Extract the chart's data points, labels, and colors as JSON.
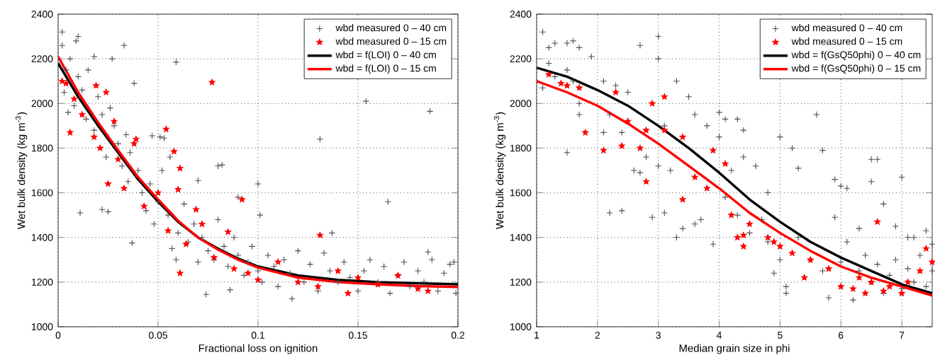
{
  "chart_data": [
    {
      "type": "scatter",
      "xlabel": "Fractional loss on ignition",
      "ylabel": "Wet bulk density (kg m$^{-3}$)",
      "xlim": [
        0,
        0.2
      ],
      "ylim": [
        1000,
        2400
      ],
      "xticks": [
        0,
        0.05,
        0.1,
        0.15,
        0.2
      ],
      "yticks": [
        1000,
        1200,
        1400,
        1600,
        1800,
        2000,
        2200,
        2400
      ],
      "grid": true,
      "legend": "top right",
      "series": [
        {
          "name": "wbd measured 0 – 40 cm",
          "type": "scatter",
          "marker": "cross",
          "color": "#4d4d4d",
          "x": [
            0.002,
            0.01,
            0.009,
            0.033,
            0.059,
            0.027,
            0.018,
            0.038,
            0.154,
            0.186,
            0.131,
            0.165,
            0.1,
            0.101,
            0.011,
            0.022,
            0.025,
            0.037,
            0.074,
            0.086,
            0.117,
            0.08,
            0.082,
            0.07,
            0.047,
            0.051,
            0.053,
            0.056,
            0.09,
            0.137,
            0.185,
            0.002,
            0.004,
            0.006,
            0.003,
            0.005,
            0.008,
            0.01,
            0.012,
            0.015,
            0.014,
            0.018,
            0.02,
            0.022,
            0.024,
            0.026,
            0.028,
            0.03,
            0.032,
            0.034,
            0.035,
            0.036,
            0.04,
            0.042,
            0.044,
            0.046,
            0.048,
            0.05,
            0.052,
            0.055,
            0.057,
            0.059,
            0.06,
            0.063,
            0.065,
            0.068,
            0.07,
            0.072,
            0.075,
            0.078,
            0.08,
            0.083,
            0.085,
            0.088,
            0.09,
            0.093,
            0.095,
            0.097,
            0.1,
            0.102,
            0.105,
            0.108,
            0.11,
            0.113,
            0.116,
            0.12,
            0.123,
            0.126,
            0.13,
            0.133,
            0.136,
            0.14,
            0.143,
            0.146,
            0.15,
            0.153,
            0.156,
            0.16,
            0.163,
            0.166,
            0.17,
            0.173,
            0.176,
            0.18,
            0.183,
            0.187,
            0.19,
            0.193,
            0.196,
            0.199,
            0.198
          ],
          "values": [
            2320,
            2300,
            2280,
            2260,
            2185,
            2200,
            2210,
            2090,
            2010,
            1965,
            1840,
            1560,
            1640,
            1500,
            1510,
            1525,
            1515,
            1375,
            1145,
            1165,
            1125,
            1720,
            1725,
            1655,
            1855,
            1850,
            1845,
            1760,
            1580,
            1420,
            1335,
            2260,
            2150,
            2200,
            2050,
            1960,
            1990,
            2120,
            2060,
            2150,
            1930,
            1880,
            2030,
            1950,
            1760,
            1980,
            1900,
            1820,
            1720,
            1860,
            1650,
            1780,
            1700,
            1600,
            1520,
            1640,
            1460,
            1560,
            1700,
            1500,
            1350,
            1300,
            1420,
            1550,
            1380,
            1460,
            1290,
            1400,
            1340,
            1300,
            1480,
            1360,
            1270,
            1400,
            1320,
            1230,
            1290,
            1360,
            1250,
            1200,
            1320,
            1270,
            1180,
            1300,
            1240,
            1340,
            1200,
            1280,
            1160,
            1330,
            1250,
            1200,
            1290,
            1220,
            1160,
            1250,
            1300,
            1200,
            1270,
            1150,
            1230,
            1290,
            1180,
            1250,
            1200,
            1300,
            1160,
            1240,
            1280,
            1150,
            1290
          ]
        },
        {
          "name": "wbd measured 0 – 15 cm",
          "type": "scatter",
          "marker": "star",
          "color": "#ff0000",
          "x": [
            0.002,
            0.004,
            0.006,
            0.008,
            0.012,
            0.018,
            0.019,
            0.021,
            0.024,
            0.025,
            0.028,
            0.03,
            0.033,
            0.038,
            0.039,
            0.043,
            0.05,
            0.054,
            0.058,
            0.061,
            0.06,
            0.061,
            0.069,
            0.077,
            0.085,
            0.092,
            0.131,
            0.055,
            0.064,
            0.072,
            0.078,
            0.088,
            0.095,
            0.1,
            0.11,
            0.12,
            0.13,
            0.14,
            0.145,
            0.15,
            0.16,
            0.17,
            0.18,
            0.185
          ],
          "values": [
            2100,
            2090,
            1870,
            2020,
            1950,
            1850,
            2080,
            1800,
            2050,
            1640,
            1920,
            1750,
            1620,
            1820,
            1840,
            1540,
            1600,
            1885,
            1785,
            1710,
            1615,
            1240,
            1525,
            2095,
            1425,
            1570,
            1410,
            1430,
            1370,
            1460,
            1310,
            1260,
            1240,
            1210,
            1290,
            1200,
            1180,
            1250,
            1150,
            1220,
            1190,
            1230,
            1170,
            1160
          ]
        },
        {
          "name": "wbd = f(LOI) 0 – 40 cm",
          "type": "line",
          "marker": "none",
          "color": "#000000",
          "x": [
            0,
            0.01,
            0.02,
            0.03,
            0.04,
            0.05,
            0.06,
            0.07,
            0.08,
            0.09,
            0.1,
            0.12,
            0.14,
            0.16,
            0.18,
            0.2
          ],
          "values": [
            2180,
            2030,
            1900,
            1780,
            1660,
            1560,
            1470,
            1400,
            1350,
            1305,
            1270,
            1230,
            1210,
            1200,
            1195,
            1190
          ]
        },
        {
          "name": "wbd = f(LOI) 0 – 15 cm",
          "type": "line",
          "marker": "none",
          "color": "#ff0000",
          "x": [
            0,
            0.01,
            0.02,
            0.03,
            0.04,
            0.05,
            0.06,
            0.07,
            0.08,
            0.09,
            0.1,
            0.12,
            0.14,
            0.16,
            0.18,
            0.2
          ],
          "values": [
            2210,
            2050,
            1915,
            1790,
            1670,
            1570,
            1475,
            1400,
            1345,
            1300,
            1265,
            1220,
            1200,
            1190,
            1182,
            1178
          ]
        }
      ]
    },
    {
      "type": "scatter",
      "xlabel": "Median grain size in phi",
      "ylabel": "Wet bulk density (kg m$^{-3}$)",
      "xlim": [
        1,
        7.5
      ],
      "ylim": [
        1000,
        2400
      ],
      "xticks": [
        1,
        2,
        3,
        4,
        5,
        6,
        7
      ],
      "yticks": [
        1000,
        1200,
        1400,
        1600,
        1800,
        2000,
        2200,
        2400
      ],
      "grid": true,
      "legend": "top right",
      "series": [
        {
          "name": "wbd measured 0 – 40 cm",
          "type": "scatter",
          "marker": "cross",
          "color": "#4d4d4d",
          "x": [
            1.1,
            1.2,
            1.3,
            1.5,
            1.6,
            1.7,
            1.9,
            1.2,
            1.1,
            1.3,
            1.5,
            1.6,
            1.7,
            1.7,
            1.5,
            2.7,
            3,
            3,
            2.1,
            2.3,
            2.5,
            2.2,
            2.4,
            2.1,
            2.2,
            2.4,
            2.9,
            3.1,
            3.3,
            3.4,
            3.6,
            3.7,
            3.9,
            2.6,
            2.7,
            2.8,
            3,
            3.2,
            3.1,
            3.3,
            3.5,
            3.6,
            3.8,
            4,
            4,
            4.1,
            4.3,
            4.4,
            4.2,
            4.4,
            4.6,
            4.1,
            4.3,
            4.5,
            4.7,
            4.8,
            5,
            5.2,
            5.3,
            5.6,
            5.7,
            5.9,
            6,
            6.1,
            6.5,
            6.6,
            6.5,
            6.7,
            7,
            7.2,
            7.4,
            4.8,
            5,
            5.1,
            5.1,
            5.3,
            5.5,
            5.7,
            5.8,
            6,
            6.1,
            6.2,
            6.3,
            6.4,
            6.5,
            6.6,
            6.7,
            6.8,
            6.9,
            7,
            7.1,
            7.2,
            7.3,
            7.4,
            7.5,
            5.9,
            6.3,
            6.9,
            7.1,
            7.5,
            4.9
          ],
          "values": [
            2320,
            2250,
            2270,
            2270,
            2280,
            2250,
            2210,
            2180,
            2070,
            2120,
            2150,
            2100,
            2000,
            1950,
            1780,
            2260,
            2300,
            2200,
            2100,
            2080,
            2050,
            1950,
            1870,
            1870,
            1510,
            1520,
            1490,
            1510,
            1400,
            1440,
            1460,
            1480,
            1370,
            1700,
            1690,
            1760,
            1720,
            1700,
            1900,
            2100,
            2030,
            1950,
            1900,
            1960,
            1850,
            1930,
            1930,
            1880,
            1700,
            1760,
            1720,
            1580,
            1500,
            1420,
            1480,
            1600,
            1850,
            1800,
            1710,
            1950,
            1790,
            1660,
            1630,
            1620,
            1750,
            1750,
            1650,
            1550,
            1670,
            1400,
            1430,
            1380,
            1300,
            1180,
            1150,
            1400,
            1300,
            1250,
            1130,
            1290,
            1380,
            1120,
            1250,
            1320,
            1200,
            1280,
            1150,
            1230,
            1300,
            1170,
            1260,
            1200,
            1320,
            1180,
            1250,
            1490,
            1440,
            1450,
            1400,
            1370,
            1240
          ]
        },
        {
          "name": "wbd measured 0 – 15 cm",
          "type": "scatter",
          "marker": "star",
          "color": "#ff0000",
          "x": [
            1.2,
            1.4,
            1.5,
            1.7,
            1.8,
            2.1,
            2.3,
            2.4,
            2.5,
            2.8,
            2.7,
            2.8,
            2.9,
            3.1,
            3.1,
            3.4,
            3.4,
            3.6,
            3.8,
            3.9,
            4.1,
            4.2,
            4.3,
            4.4,
            4.4,
            4.5,
            4.8,
            4.9,
            5,
            5.2,
            5.4,
            5.5,
            5.8,
            6,
            6.2,
            6.3,
            6.4,
            6.5,
            6.6,
            6.7,
            6.8,
            7,
            7.1,
            7.3,
            7.4,
            7.5
          ],
          "values": [
            2130,
            2090,
            2080,
            2070,
            1870,
            1790,
            2050,
            1810,
            1920,
            1650,
            1800,
            1880,
            2000,
            2030,
            1880,
            1850,
            1570,
            1670,
            1620,
            1790,
            1730,
            1500,
            1400,
            1410,
            1360,
            1460,
            1400,
            1380,
            1360,
            1330,
            1220,
            1300,
            1260,
            1180,
            1170,
            1220,
            1150,
            1200,
            1470,
            1160,
            1180,
            1150,
            1200,
            1250,
            1350,
            1290
          ]
        },
        {
          "name": "wbd = f(GsQ50phi) 0 – 40 cm",
          "type": "line",
          "marker": "none",
          "color": "#000000",
          "x": [
            1,
            1.5,
            2,
            2.5,
            3,
            3.5,
            4,
            4.5,
            5,
            5.5,
            6,
            6.5,
            7,
            7.5
          ],
          "values": [
            2160,
            2120,
            2060,
            1990,
            1900,
            1800,
            1690,
            1570,
            1470,
            1380,
            1310,
            1250,
            1190,
            1150
          ]
        },
        {
          "name": "wbd = f(GsQ50phi) 0 – 15 cm",
          "type": "line",
          "marker": "none",
          "color": "#ff0000",
          "x": [
            1,
            1.5,
            2,
            2.5,
            3,
            3.5,
            4,
            4.5,
            5,
            5.5,
            6,
            6.5,
            7,
            7.5
          ],
          "values": [
            2100,
            2050,
            1990,
            1910,
            1820,
            1720,
            1620,
            1510,
            1420,
            1340,
            1270,
            1220,
            1180,
            1140
          ]
        }
      ]
    }
  ]
}
